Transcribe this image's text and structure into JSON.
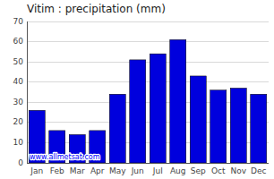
{
  "chart_data": {
    "type": "bar",
    "title": "Vitim : precipitation (mm)",
    "categories": [
      "Jan",
      "Feb",
      "Mar",
      "Apr",
      "May",
      "Jun",
      "Jul",
      "Aug",
      "Sep",
      "Oct",
      "Nov",
      "Dec"
    ],
    "values": [
      26,
      16,
      14,
      16,
      34,
      51,
      54,
      61,
      43,
      36,
      37,
      34
    ],
    "color": "#0000dd",
    "ylim": [
      0,
      70
    ],
    "yticks": [
      0,
      10,
      20,
      30,
      40,
      50,
      60,
      70
    ],
    "grid": true,
    "annotation": "www.allmetsat.com"
  }
}
